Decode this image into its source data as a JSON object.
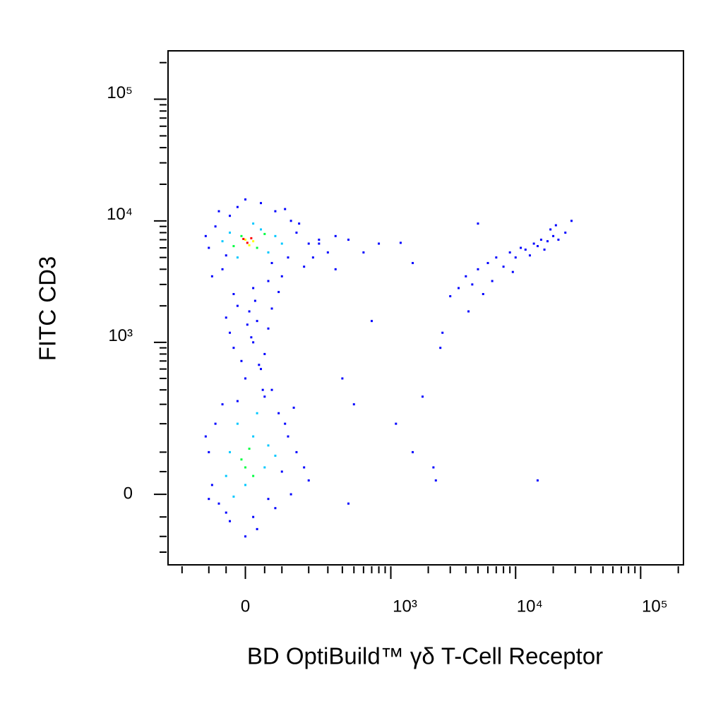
{
  "chart_data": {
    "type": "scatter",
    "scale": "biexponential",
    "x_label": "BD OptiBuild™ γδ T-Cell Receptor",
    "y_label": "FITC CD3",
    "xlim": [
      -270,
      220000
    ],
    "ylim": [
      -200,
      250000
    ],
    "xticks": [
      0,
      {
        "value": 1000,
        "label": "10³"
      },
      {
        "value": 10000,
        "label": "10⁴"
      },
      {
        "value": 100000,
        "label": "10⁵"
      }
    ],
    "yticks": [
      0,
      {
        "value": 1000,
        "label": "10³"
      },
      {
        "value": 10000,
        "label": "10⁴"
      },
      {
        "value": 100000,
        "label": "10⁵"
      }
    ],
    "xminorticks": [
      -200,
      -100,
      -50,
      50,
      100,
      200,
      300,
      400,
      500,
      600,
      700,
      800,
      900,
      2000,
      3000,
      4000,
      5000,
      6000,
      7000,
      8000,
      9000,
      20000,
      30000,
      40000,
      50000,
      60000,
      70000,
      80000,
      90000,
      200000
    ],
    "yminorticks": [
      -150,
      -100,
      -50,
      50,
      100,
      200,
      300,
      400,
      500,
      600,
      700,
      800,
      900,
      2000,
      3000,
      4000,
      5000,
      6000,
      7000,
      8000,
      9000,
      20000,
      30000,
      40000,
      50000,
      60000,
      70000,
      80000,
      90000,
      200000
    ],
    "series": [
      {
        "color": "#0000ff",
        "x": [
          -100,
          -80,
          -60,
          -40,
          -90,
          120,
          150,
          100,
          130,
          80,
          -20,
          40,
          200,
          250,
          300,
          -110,
          60,
          20,
          -30,
          180,
          110,
          -70,
          0,
          90,
          160,
          220,
          -50,
          70,
          -20,
          10,
          30,
          -40,
          20,
          50,
          -10,
          40,
          0,
          60,
          -30,
          25,
          45,
          -50,
          70,
          15,
          35,
          5,
          -100,
          -80,
          -60,
          -90,
          -70,
          100,
          120,
          90,
          130,
          80,
          -40,
          20,
          60,
          150,
          180,
          -110,
          50,
          -20,
          110,
          200,
          -50,
          30,
          0,
          140,
          -100,
          70,
          3000,
          3500,
          4000,
          4500,
          5000,
          6000,
          7000,
          8000,
          9000,
          10000,
          11000,
          12000,
          14000,
          15000,
          16000,
          18000,
          20000,
          22000,
          25000,
          28000,
          13000,
          9500,
          6500,
          5500,
          4200,
          2500,
          2600,
          17000,
          19000,
          21000,
          350,
          450,
          600,
          800,
          1200,
          1500,
          700,
          400,
          500,
          1100,
          1500,
          2200,
          2300,
          15000,
          450,
          5000,
          250,
          1800,
          350
        ],
        "y": [
          6000,
          9000,
          4000,
          11000,
          3500,
          5000,
          8000,
          3500,
          10000,
          12000,
          13000,
          14000,
          6500,
          7000,
          5500,
          7500,
          3200,
          2800,
          2500,
          4200,
          12500,
          12000,
          15000,
          2600,
          9500,
          5000,
          5200,
          4500,
          2000,
          1800,
          1500,
          1200,
          1000,
          800,
          700,
          600,
          500,
          1300,
          900,
          2200,
          400,
          1600,
          1900,
          1100,
          650,
          1400,
          100,
          200,
          300,
          20,
          -20,
          50,
          150,
          250,
          0,
          -30,
          -60,
          -50,
          -10,
          100,
          60,
          150,
          350,
          320,
          200,
          30,
          -40,
          -80,
          -100,
          280,
          -10,
          400,
          2400,
          2800,
          3500,
          3000,
          4000,
          4500,
          5000,
          4200,
          5500,
          5000,
          6000,
          5800,
          6500,
          6200,
          7000,
          6800,
          7500,
          7000,
          8000,
          10000,
          5200,
          3800,
          3200,
          2500,
          1800,
          900,
          1200,
          5800,
          8500,
          9200,
          7500,
          7000,
          5500,
          6500,
          6600,
          4500,
          1500,
          500,
          300,
          200,
          100,
          60,
          30,
          30,
          -20,
          9500,
          6500,
          350,
          4000
        ]
      },
      {
        "color": "#00c8ff",
        "x": [
          -40,
          40,
          60,
          -20,
          80,
          -60,
          20,
          100,
          -40,
          20,
          50,
          -20,
          60,
          -50,
          30,
          0,
          80,
          -30
        ],
        "y": [
          8000,
          8500,
          5500,
          5000,
          7500,
          6800,
          9500,
          6500,
          100,
          150,
          60,
          200,
          120,
          40,
          250,
          20,
          90,
          -5
        ]
      },
      {
        "color": "#00ff40",
        "x": [
          -10,
          30,
          50,
          -30,
          -10,
          10,
          0,
          20
        ],
        "y": [
          7500,
          6000,
          7800,
          6200,
          80,
          110,
          60,
          40
        ]
      },
      {
        "color": "#ffff00",
        "x": [
          0,
          20,
          10
        ],
        "y": [
          7000,
          6800,
          6300
        ]
      },
      {
        "color": "#ff0000",
        "x": [
          5,
          15,
          -5
        ],
        "y": [
          6600,
          7200,
          7100
        ]
      }
    ]
  }
}
